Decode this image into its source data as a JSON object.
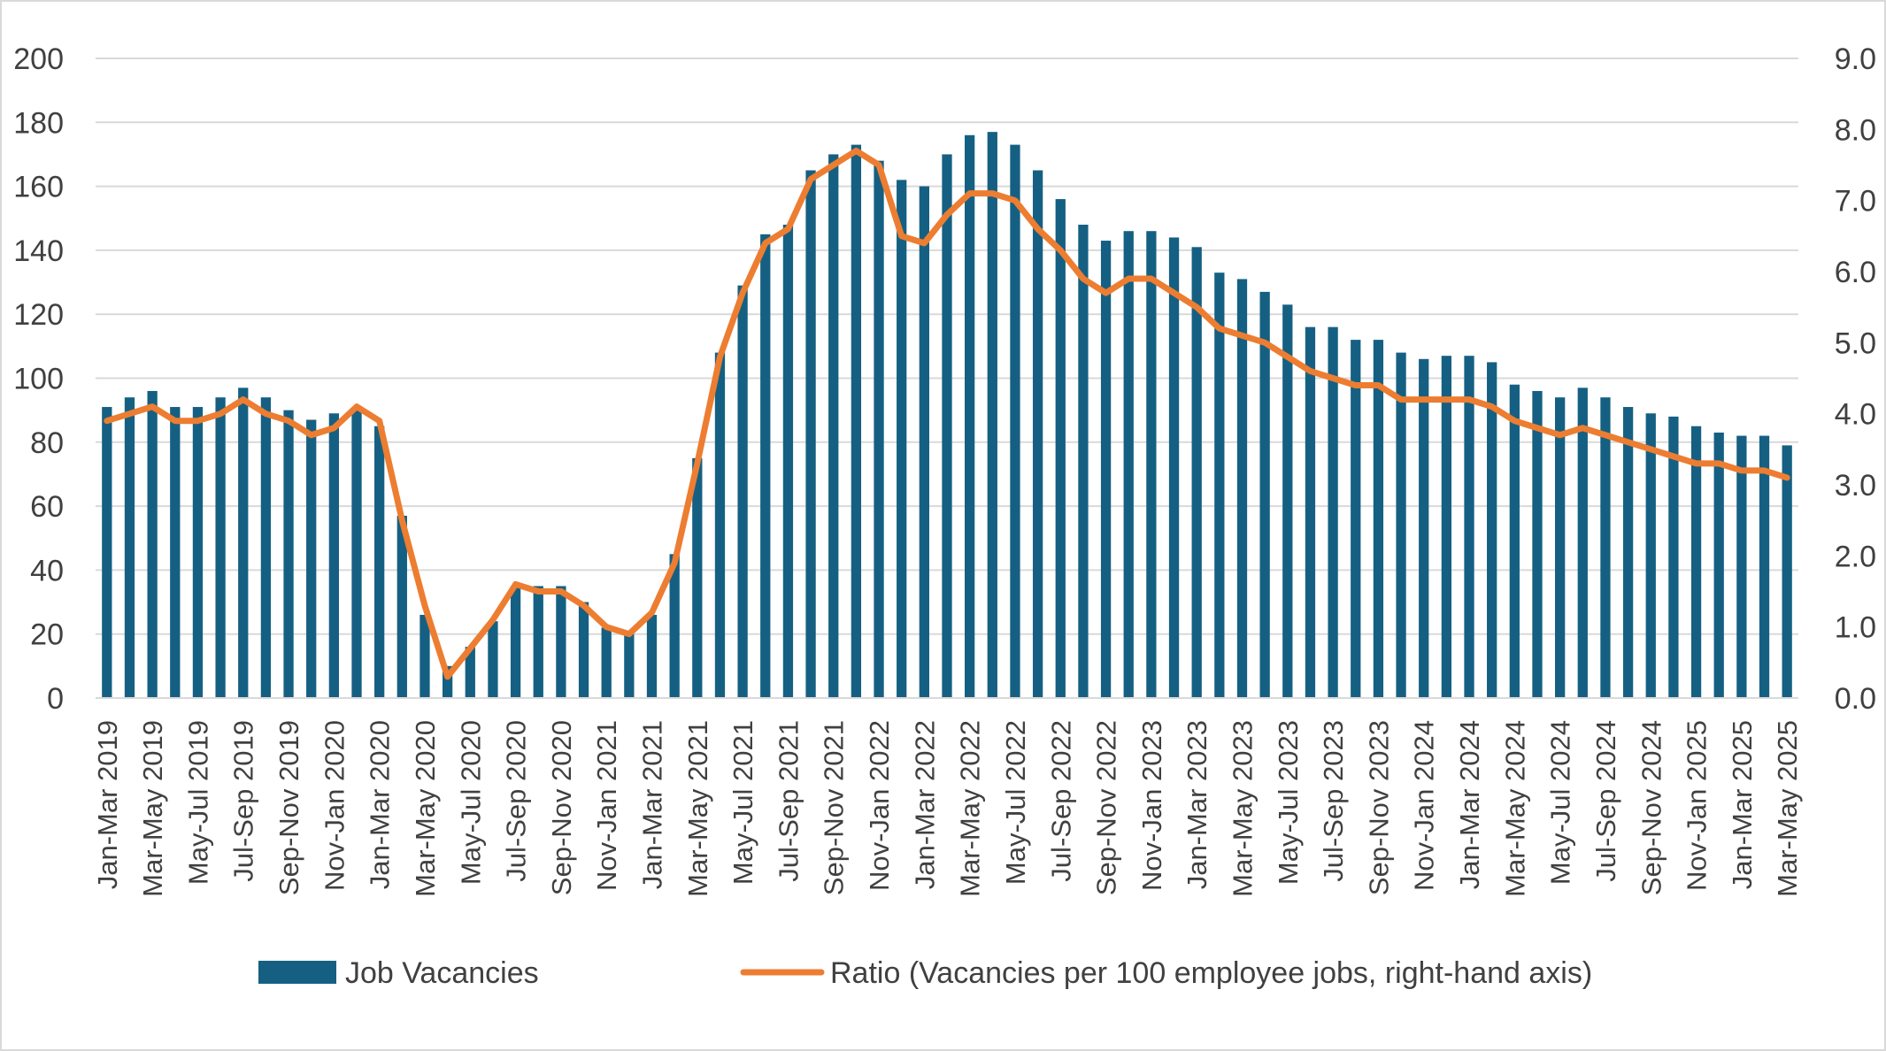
{
  "chart_data": {
    "type": "bar",
    "title": "",
    "x": [
      "Jan-Mar 2019",
      "Feb-Apr 2019",
      "Mar-May 2019",
      "Apr-Jun 2019",
      "May-Jul 2019",
      "Jun-Aug 2019",
      "Jul-Sep 2019",
      "Aug-Oct 2019",
      "Sep-Nov 2019",
      "Oct-Dec 2019",
      "Nov-Jan 2020",
      "Dec-Feb 2020",
      "Jan-Mar 2020",
      "Feb-Apr 2020",
      "Mar-May 2020",
      "Apr-Jun 2020",
      "May-Jul 2020",
      "Jun-Aug 2020",
      "Jul-Sep 2020",
      "Aug-Oct 2020",
      "Sep-Nov 2020",
      "Oct-Dec 2020",
      "Nov-Jan 2021",
      "Dec-Feb 2021",
      "Jan-Mar 2021",
      "Feb-Apr 2021",
      "Mar-May 2021",
      "Apr-Jun 2021",
      "May-Jul 2021",
      "Jun-Aug 2021",
      "Jul-Sep 2021",
      "Aug-Oct 2021",
      "Sep-Nov 2021",
      "Oct-Dec 2021",
      "Nov-Jan 2022",
      "Dec-Feb 2022",
      "Jan-Mar 2022",
      "Feb-Apr 2022",
      "Mar-May 2022",
      "Apr-Jun 2022",
      "May-Jul 2022",
      "Jun-Aug 2022",
      "Jul-Sep 2022",
      "Aug-Oct 2022",
      "Sep-Nov 2022",
      "Oct-Dec 2022",
      "Nov-Jan 2023",
      "Dec-Feb 2023",
      "Jan-Mar 2023",
      "Feb-Apr 2023",
      "Mar-May 2023",
      "Apr-Jun 2023",
      "May-Jul 2023",
      "Jun-Aug 2023",
      "Jul-Sep 2023",
      "Aug-Oct 2023",
      "Sep-Nov 2023",
      "Oct-Dec 2023",
      "Nov-Jan 2024",
      "Dec-Feb 2024",
      "Jan-Mar 2024",
      "Feb-Apr 2024",
      "Mar-May 2024",
      "Apr-Jun 2024",
      "May-Jul 2024",
      "Jun-Aug 2024",
      "Jul-Sep 2024",
      "Aug-Oct 2024",
      "Sep-Nov 2024",
      "Oct-Dec 2024",
      "Nov-Jan 2025",
      "Dec-Feb 2025",
      "Jan-Mar 2025",
      "Feb-Apr 2025",
      "Mar-May 2025"
    ],
    "x_tick_labels": [
      "Jan-Mar 2019",
      "Mar-May 2019",
      "May-Jul 2019",
      "Jul-Sep 2019",
      "Sep-Nov 2019",
      "Nov-Jan 2020",
      "Jan-Mar 2020",
      "Mar-May 2020",
      "May-Jul 2020",
      "Jul-Sep 2020",
      "Sep-Nov 2020",
      "Nov-Jan 2021",
      "Jan-Mar 2021",
      "Mar-May 2021",
      "May-Jul 2021",
      "Jul-Sep 2021",
      "Sep-Nov 2021",
      "Nov-Jan 2022",
      "Jan-Mar 2022",
      "Mar-May 2022",
      "May-Jul 2022",
      "Jul-Sep 2022",
      "Sep-Nov 2022",
      "Nov-Jan 2023",
      "Jan-Mar 2023",
      "Mar-May 2023",
      "May-Jul 2023",
      "Jul-Sep 2023",
      "Sep-Nov 2023",
      "Nov-Jan 2024",
      "Jan-Mar 2024",
      "Mar-May 2024",
      "May-Jul 2024",
      "Jul-Sep 2024",
      "Sep-Nov 2024",
      "Nov-Jan 2025",
      "Jan-Mar 2025",
      "Mar-May 2025"
    ],
    "x_tick_every": 2,
    "series": [
      {
        "name": "Job Vacancies",
        "type": "bar",
        "axis": "left",
        "color": "#156082",
        "values": [
          91,
          94,
          96,
          91,
          91,
          94,
          97,
          94,
          90,
          87,
          89,
          90,
          85,
          57,
          26,
          10,
          16,
          24,
          35,
          35,
          35,
          30,
          22,
          20,
          26,
          45,
          75,
          108,
          129,
          145,
          148,
          165,
          170,
          173,
          168,
          162,
          160,
          170,
          176,
          177,
          173,
          165,
          156,
          148,
          143,
          146,
          146,
          144,
          141,
          133,
          131,
          127,
          123,
          116,
          116,
          112,
          112,
          108,
          106,
          107,
          107,
          105,
          98,
          96,
          94,
          97,
          94,
          91,
          89,
          88,
          85,
          83,
          82,
          82,
          79
        ]
      },
      {
        "name": "Ratio (Vacancies per 100 employee jobs, right-hand axis)",
        "type": "line",
        "axis": "right",
        "color": "#ED7D31",
        "values": [
          3.9,
          4.0,
          4.1,
          3.9,
          3.9,
          4.0,
          4.2,
          4.0,
          3.9,
          3.7,
          3.8,
          4.1,
          3.9,
          2.5,
          1.3,
          0.3,
          0.7,
          1.1,
          1.6,
          1.5,
          1.5,
          1.3,
          1.0,
          0.9,
          1.2,
          1.9,
          3.3,
          4.8,
          5.7,
          6.4,
          6.6,
          7.3,
          7.5,
          7.7,
          7.5,
          6.5,
          6.4,
          6.8,
          7.1,
          7.1,
          7.0,
          6.6,
          6.3,
          5.9,
          5.7,
          5.9,
          5.9,
          5.7,
          5.5,
          5.2,
          5.1,
          5.0,
          4.8,
          4.6,
          4.5,
          4.4,
          4.4,
          4.2,
          4.2,
          4.2,
          4.2,
          4.1,
          3.9,
          3.8,
          3.7,
          3.8,
          3.7,
          3.6,
          3.5,
          3.4,
          3.3,
          3.3,
          3.2,
          3.2,
          3.1
        ]
      }
    ],
    "y_left": {
      "ylim": [
        0,
        200
      ],
      "ticks": [
        "0",
        "20",
        "40",
        "60",
        "80",
        "100",
        "120",
        "140",
        "160",
        "180",
        "200"
      ]
    },
    "y_right": {
      "ylim": [
        0,
        9
      ],
      "ticks": [
        "0.0",
        "1.0",
        "2.0",
        "3.0",
        "4.0",
        "5.0",
        "6.0",
        "7.0",
        "8.0",
        "9.0"
      ]
    },
    "xlabel": "",
    "ylabel": "",
    "grid": true,
    "legend_position": "bottom",
    "colors": {
      "bar": "#156082",
      "line": "#ED7D31",
      "grid": "#d9d9d9",
      "text": "#404040"
    }
  }
}
